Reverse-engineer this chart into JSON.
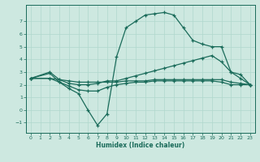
{
  "xlabel": "Humidex (Indice chaleur)",
  "bg_color": "#cde8e0",
  "line_color": "#1a6b5a",
  "grid_color": "#b0d8cc",
  "xlim": [
    -0.5,
    23.5
  ],
  "ylim": [
    -1.8,
    8.3
  ],
  "xticks": [
    0,
    1,
    2,
    3,
    4,
    5,
    6,
    7,
    8,
    9,
    10,
    11,
    12,
    13,
    14,
    15,
    16,
    17,
    18,
    19,
    20,
    21,
    22,
    23
  ],
  "yticks": [
    -1,
    0,
    1,
    2,
    3,
    4,
    5,
    6,
    7
  ],
  "line1_x": [
    0,
    2,
    3,
    4,
    5,
    6,
    7,
    8,
    9,
    10,
    11,
    12,
    13,
    14,
    15,
    16,
    17,
    18,
    19,
    20,
    21,
    22,
    23
  ],
  "line1_y": [
    2.5,
    2.9,
    2.2,
    1.7,
    1.3,
    0.0,
    -1.2,
    -0.3,
    4.2,
    6.5,
    7.0,
    7.5,
    7.6,
    7.7,
    7.5,
    6.5,
    5.5,
    5.2,
    5.0,
    5.0,
    3.0,
    2.5,
    2.0
  ],
  "line2_x": [
    0,
    2,
    3,
    4,
    5,
    6,
    7,
    8,
    9,
    10,
    11,
    12,
    13,
    14,
    15,
    16,
    17,
    18,
    19,
    20,
    21,
    22,
    23
  ],
  "line2_y": [
    2.5,
    2.5,
    2.4,
    2.3,
    2.2,
    2.2,
    2.2,
    2.2,
    2.2,
    2.3,
    2.3,
    2.3,
    2.4,
    2.4,
    2.4,
    2.4,
    2.4,
    2.4,
    2.4,
    2.4,
    2.2,
    2.1,
    2.0
  ],
  "line3_x": [
    0,
    2,
    3,
    4,
    5,
    6,
    7,
    8,
    9,
    10,
    11,
    12,
    13,
    14,
    15,
    16,
    17,
    18,
    19,
    20,
    21,
    22,
    23
  ],
  "line3_y": [
    2.5,
    3.0,
    2.4,
    2.1,
    2.0,
    2.0,
    2.1,
    2.3,
    2.3,
    2.5,
    2.7,
    2.9,
    3.1,
    3.3,
    3.5,
    3.7,
    3.9,
    4.1,
    4.3,
    3.8,
    3.0,
    2.8,
    2.0
  ],
  "line4_x": [
    0,
    2,
    3,
    4,
    5,
    6,
    7,
    8,
    9,
    10,
    11,
    12,
    13,
    14,
    15,
    16,
    17,
    18,
    19,
    20,
    21,
    22,
    23
  ],
  "line4_y": [
    2.5,
    2.5,
    2.2,
    1.9,
    1.6,
    1.5,
    1.5,
    1.8,
    2.0,
    2.1,
    2.2,
    2.2,
    2.3,
    2.3,
    2.3,
    2.3,
    2.3,
    2.3,
    2.3,
    2.2,
    2.0,
    2.0,
    2.0
  ]
}
